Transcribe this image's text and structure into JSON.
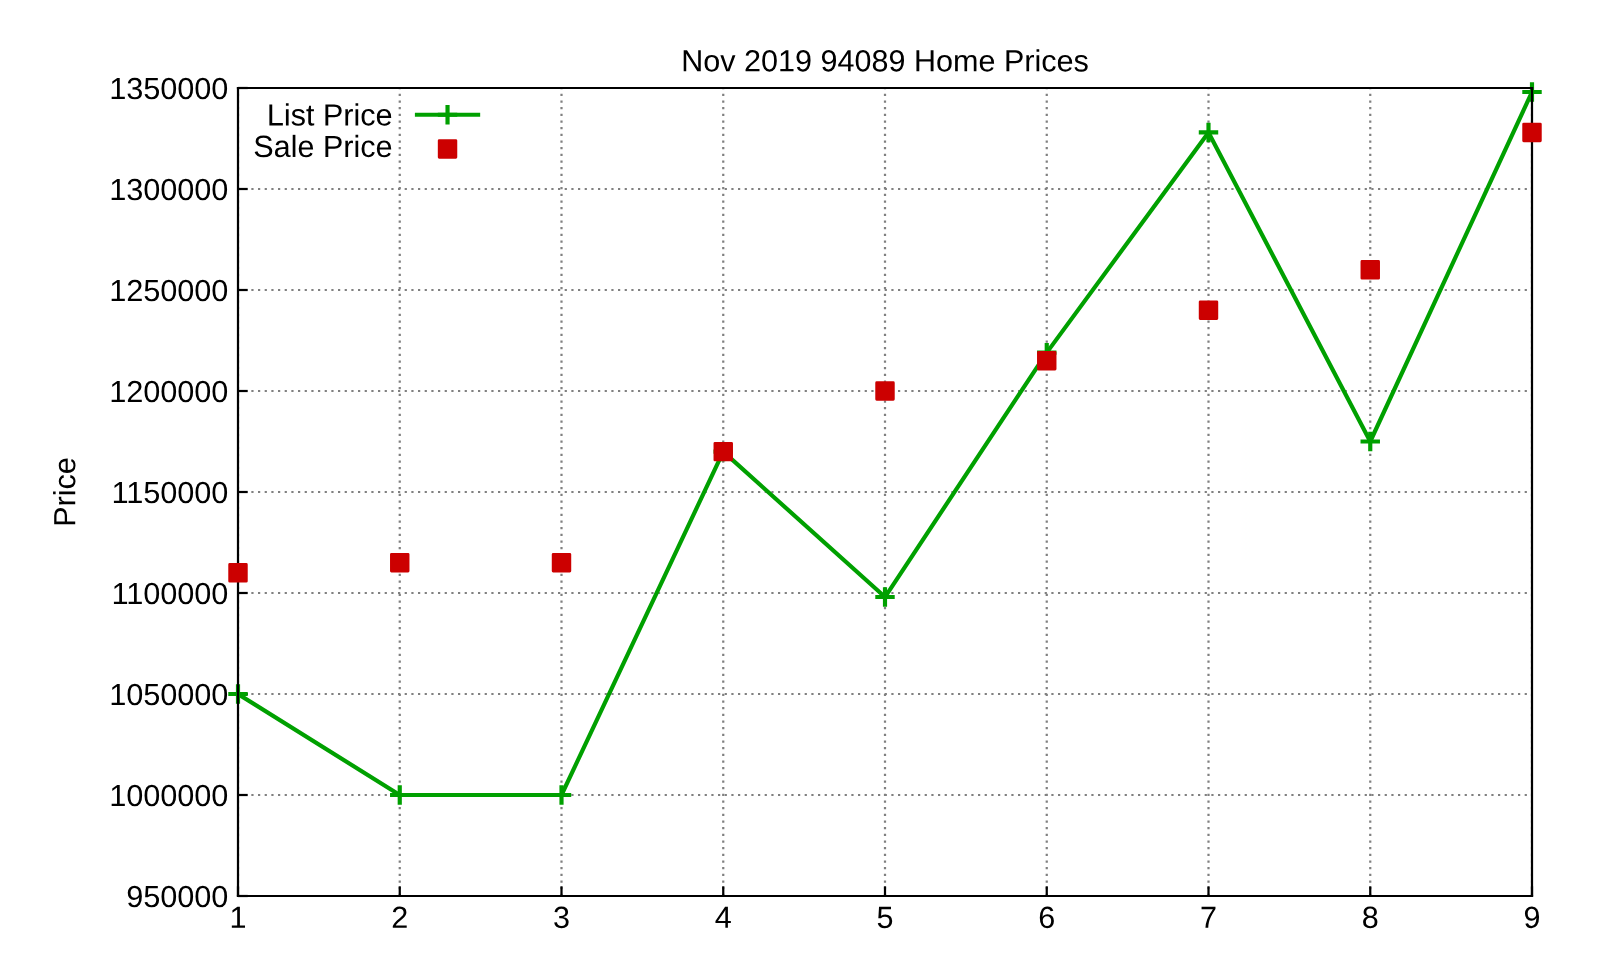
{
  "chart_data": {
    "type": "line",
    "title": "Nov 2019 94089 Home Prices",
    "ylabel": "Price",
    "x": [
      1,
      2,
      3,
      4,
      5,
      6,
      7,
      8,
      9
    ],
    "series": [
      {
        "name": "List Price",
        "color": "#00a000",
        "marker": "cross",
        "values": [
          1050000,
          1000000,
          1000000,
          1170000,
          1098000,
          1219000,
          1328000,
          1175000,
          1348000
        ]
      },
      {
        "name": "Sale Price",
        "type": "scatter",
        "color": "#cc0000",
        "marker": "square",
        "values": [
          1110000,
          1115000,
          1115000,
          1170000,
          1200000,
          1215000,
          1240000,
          1260000,
          1328000
        ]
      }
    ],
    "xlim": [
      1,
      9
    ],
    "xticks": [
      1,
      2,
      3,
      4,
      5,
      6,
      7,
      8,
      9
    ],
    "ylim": [
      950000,
      1350000
    ],
    "yticks": [
      950000,
      1000000,
      1050000,
      1100000,
      1150000,
      1200000,
      1250000,
      1300000,
      1350000
    ],
    "grid": true,
    "legend": "top left"
  }
}
